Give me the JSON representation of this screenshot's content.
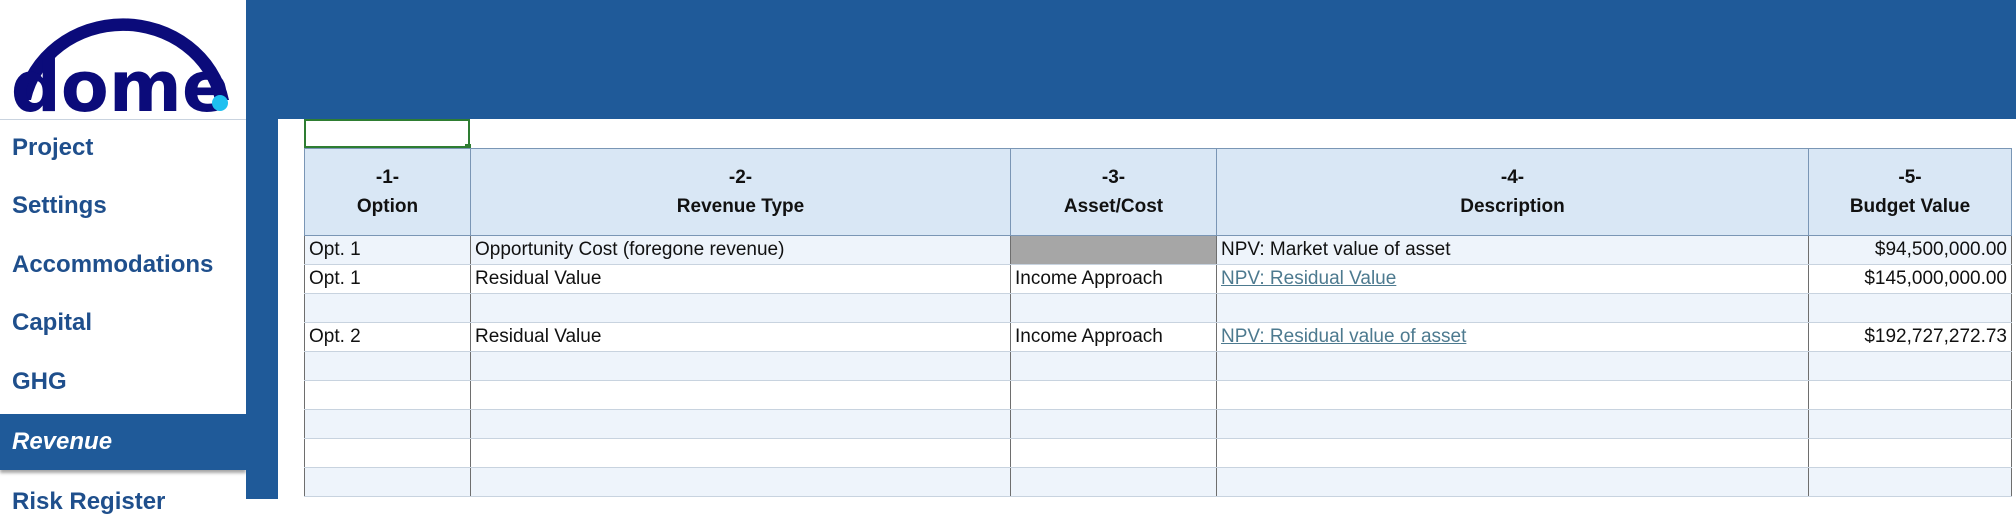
{
  "brand": {
    "logo_text": "dome",
    "colors": {
      "navy": "#0b0b7a",
      "dot": "#1ec0f0",
      "header_blue": "#1f5a99"
    }
  },
  "sidebar": {
    "items": [
      {
        "label": "Project",
        "active": false
      },
      {
        "label": "Settings",
        "active": false
      },
      {
        "label": "Accommodations",
        "active": false
      },
      {
        "label": "Capital",
        "active": false
      },
      {
        "label": "GHG",
        "active": false
      },
      {
        "label": "Revenue",
        "active": true
      },
      {
        "label": "Risk Register",
        "active": false
      }
    ]
  },
  "table": {
    "headers": [
      {
        "num": "-1-",
        "label": "Option"
      },
      {
        "num": "-2-",
        "label": "Revenue Type"
      },
      {
        "num": "-3-",
        "label": "Asset/Cost"
      },
      {
        "num": "-4-",
        "label": "Description"
      },
      {
        "num": "-5-",
        "label": "Budget Value"
      }
    ],
    "rows": [
      {
        "option": "Opt. 1",
        "revenue_type": "Opportunity Cost (foregone revenue)",
        "asset_cost": "",
        "description": "NPV: Market value of asset",
        "description_link": false,
        "budget_value": "$94,500,000.00"
      },
      {
        "option": "Opt. 1",
        "revenue_type": "Residual Value",
        "asset_cost": "Income Approach",
        "description": "NPV: Residual Value",
        "description_link": true,
        "budget_value": "$145,000,000.00"
      },
      {
        "option": "",
        "revenue_type": "",
        "asset_cost": "",
        "description": "",
        "description_link": false,
        "budget_value": ""
      },
      {
        "option": "Opt. 2",
        "revenue_type": "Residual Value",
        "asset_cost": "Income Approach",
        "description": "NPV: Residual value of asset",
        "description_link": true,
        "budget_value": "$192,727,272.73"
      },
      {
        "option": "",
        "revenue_type": "",
        "asset_cost": "",
        "description": "",
        "description_link": false,
        "budget_value": ""
      },
      {
        "option": "",
        "revenue_type": "",
        "asset_cost": "",
        "description": "",
        "description_link": false,
        "budget_value": ""
      },
      {
        "option": "",
        "revenue_type": "",
        "asset_cost": "",
        "description": "",
        "description_link": false,
        "budget_value": ""
      },
      {
        "option": "",
        "revenue_type": "",
        "asset_cost": "",
        "description": "",
        "description_link": false,
        "budget_value": ""
      },
      {
        "option": "",
        "revenue_type": "",
        "asset_cost": "",
        "description": "",
        "description_link": false,
        "budget_value": ""
      }
    ]
  }
}
